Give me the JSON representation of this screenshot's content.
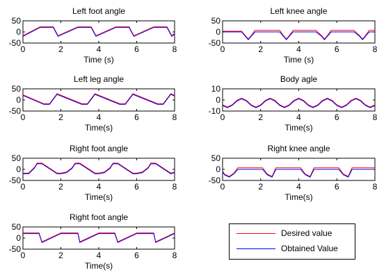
{
  "colors": {
    "desired": "#ff0000",
    "obtained": "#0000ff",
    "axis": "#000000"
  },
  "legend": {
    "desired_label": "Desired value",
    "obtained_label": "Obtained Value",
    "placement": "bottom-right"
  },
  "chart_data": [
    {
      "type": "line",
      "title": "Left foot angle",
      "xlabel": "Time (s)",
      "ylabel": "",
      "xlim": [
        0,
        8
      ],
      "ylim": [
        -50,
        50
      ],
      "xticks": [
        "0",
        "2",
        "4",
        "6",
        "8"
      ],
      "yticks": [
        "50",
        "0",
        "-50"
      ],
      "grid": false,
      "series": [
        {
          "role": "desired",
          "x": [
            0,
            0.9,
            1.6,
            1.85,
            2.9,
            3.6,
            3.85,
            4.9,
            5.6,
            5.85,
            6.9,
            7.6,
            7.85,
            8
          ],
          "values": [
            -20,
            20,
            20,
            -20,
            20,
            20,
            -20,
            20,
            20,
            -20,
            20,
            20,
            -20,
            -10
          ]
        },
        {
          "role": "obtained",
          "x": [
            0,
            0.9,
            1.6,
            1.85,
            2.9,
            3.6,
            3.85,
            4.9,
            5.6,
            5.85,
            6.9,
            7.6,
            7.85,
            8
          ],
          "values": [
            -20,
            20,
            20,
            -20,
            20,
            20,
            -20,
            20,
            20,
            -20,
            20,
            20,
            -20,
            -10
          ]
        }
      ]
    },
    {
      "type": "line",
      "title": "Left knee angle",
      "xlabel": "Time (s)",
      "ylabel": "",
      "xlim": [
        0,
        8
      ],
      "ylim": [
        -50,
        50
      ],
      "xticks": [
        "0",
        "2",
        "4",
        "6",
        "8"
      ],
      "yticks": [
        "50",
        "0",
        "-50"
      ],
      "grid": false,
      "series": [
        {
          "role": "desired",
          "x": [
            0,
            1.0,
            1.2,
            1.35,
            1.5,
            1.7,
            3.0,
            3.2,
            3.35,
            3.5,
            3.7,
            4.9,
            5.2,
            5.35,
            5.5,
            5.7,
            6.9,
            7.2,
            7.35,
            7.5,
            7.7,
            8
          ],
          "values": [
            0,
            0,
            -20,
            -35,
            -20,
            4,
            4,
            -20,
            -35,
            -20,
            4,
            4,
            -20,
            -35,
            -20,
            4,
            4,
            -20,
            -35,
            -20,
            4,
            4
          ]
        },
        {
          "role": "obtained",
          "x": [
            0,
            1.0,
            1.2,
            1.35,
            1.5,
            1.7,
            3.0,
            3.2,
            3.35,
            3.5,
            3.7,
            4.9,
            5.2,
            5.35,
            5.5,
            5.7,
            6.9,
            7.2,
            7.35,
            7.5,
            7.7,
            8
          ],
          "values": [
            0,
            0,
            -20,
            -35,
            -20,
            0,
            0,
            -20,
            -35,
            -20,
            0,
            0,
            -20,
            -35,
            -20,
            0,
            0,
            -20,
            -35,
            -20,
            0,
            0
          ]
        }
      ]
    },
    {
      "type": "line",
      "title": "Left leg angle",
      "xlabel": "Time(s)",
      "ylabel": "",
      "xlim": [
        0,
        8
      ],
      "ylim": [
        -50,
        50
      ],
      "xticks": [
        "0",
        "2",
        "4",
        "6",
        "8"
      ],
      "yticks": [
        "50",
        "0",
        "-50"
      ],
      "grid": false,
      "series": [
        {
          "role": "desired",
          "x": [
            0,
            1.1,
            1.4,
            1.8,
            3.1,
            3.4,
            3.8,
            5.1,
            5.4,
            5.8,
            7.1,
            7.4,
            7.8,
            8
          ],
          "values": [
            20,
            -20,
            -20,
            25,
            -20,
            -20,
            25,
            -20,
            -20,
            25,
            -20,
            -20,
            25,
            18
          ]
        },
        {
          "role": "obtained",
          "x": [
            0,
            1.1,
            1.4,
            1.8,
            3.1,
            3.4,
            3.8,
            5.1,
            5.4,
            5.8,
            7.1,
            7.4,
            7.8,
            8
          ],
          "values": [
            20,
            -20,
            -20,
            25,
            -20,
            -20,
            25,
            -20,
            -20,
            25,
            -20,
            -20,
            25,
            18
          ]
        }
      ]
    },
    {
      "type": "line",
      "title": "Body agle",
      "xlabel": "Time(s)",
      "ylabel": "",
      "xlim": [
        0,
        8
      ],
      "ylim": [
        -10,
        10
      ],
      "xticks": [
        "0",
        "2",
        "4",
        "6",
        "8"
      ],
      "yticks": [
        "10",
        "0",
        "-10"
      ],
      "grid": false,
      "series": [
        {
          "role": "desired",
          "x": [
            0,
            0.25,
            0.5,
            0.75,
            1.0,
            1.25,
            1.5,
            1.75,
            2.0,
            2.25,
            2.5,
            2.75,
            3.0,
            3.25,
            3.5,
            3.75,
            4.0,
            4.25,
            4.5,
            4.75,
            5.0,
            5.25,
            5.5,
            5.75,
            6.0,
            6.25,
            6.5,
            6.75,
            7.0,
            7.25,
            7.5,
            7.75,
            8.0
          ],
          "values": [
            -5,
            -7,
            -5,
            -1,
            1,
            -1,
            -5,
            -7,
            -5,
            -1,
            1,
            -1,
            -5,
            -7,
            -5,
            -1,
            1,
            -1,
            -5,
            -7,
            -5,
            -1,
            1,
            -1,
            -5,
            -7,
            -5,
            -1,
            1,
            -1,
            -5,
            -7,
            -5
          ]
        },
        {
          "role": "obtained",
          "x": [
            0,
            0.25,
            0.5,
            0.75,
            1.0,
            1.25,
            1.5,
            1.75,
            2.0,
            2.25,
            2.5,
            2.75,
            3.0,
            3.25,
            3.5,
            3.75,
            4.0,
            4.25,
            4.5,
            4.75,
            5.0,
            5.25,
            5.5,
            5.75,
            6.0,
            6.25,
            6.5,
            6.75,
            7.0,
            7.25,
            7.5,
            7.75,
            8.0
          ],
          "values": [
            -5,
            -7,
            -5,
            -1,
            1,
            -1,
            -5,
            -7,
            -5,
            -1,
            1,
            -1,
            -5,
            -7,
            -5,
            -1,
            1,
            -1,
            -5,
            -7,
            -5,
            -1,
            1,
            -1,
            -5,
            -7,
            -5,
            -1,
            1,
            -1,
            -5,
            -7,
            -5
          ]
        }
      ]
    },
    {
      "type": "line",
      "title": "Right foot angle",
      "xlabel": "Time(s)",
      "ylabel": "",
      "xlim": [
        0,
        8
      ],
      "ylim": [
        -50,
        50
      ],
      "xticks": [
        "0",
        "2",
        "4",
        "6",
        "8"
      ],
      "yticks": [
        "50",
        "0",
        "-50"
      ],
      "grid": false,
      "series": [
        {
          "role": "desired",
          "x": [
            0,
            0.3,
            0.6,
            0.75,
            1.0,
            1.8,
            2.0,
            2.3,
            2.6,
            2.75,
            3.0,
            3.8,
            4.0,
            4.3,
            4.6,
            4.75,
            5.0,
            5.8,
            6.0,
            6.3,
            6.6,
            6.75,
            7.0,
            7.8,
            8
          ],
          "values": [
            -20,
            -20,
            5,
            25,
            25,
            -20,
            -20,
            -15,
            5,
            25,
            25,
            -20,
            -20,
            -15,
            5,
            25,
            25,
            -20,
            -20,
            -15,
            5,
            25,
            25,
            -20,
            -15
          ]
        },
        {
          "role": "obtained",
          "x": [
            0,
            0.3,
            0.6,
            0.75,
            1.0,
            1.8,
            2.0,
            2.3,
            2.6,
            2.75,
            3.0,
            3.8,
            4.0,
            4.3,
            4.6,
            4.75,
            5.0,
            5.8,
            6.0,
            6.3,
            6.6,
            6.75,
            7.0,
            7.8,
            8
          ],
          "values": [
            -20,
            -20,
            5,
            25,
            25,
            -20,
            -20,
            -15,
            5,
            25,
            25,
            -20,
            -20,
            -15,
            5,
            25,
            25,
            -20,
            -20,
            -15,
            5,
            25,
            25,
            -20,
            -15
          ]
        }
      ]
    },
    {
      "type": "line",
      "title": "Right knee angle",
      "xlabel": "Time(s)",
      "ylabel": "",
      "xlim": [
        0,
        8
      ],
      "ylim": [
        -50,
        50
      ],
      "xticks": [
        "0",
        "2",
        "4",
        "6",
        "8"
      ],
      "yticks": [
        "50",
        "0",
        "-50"
      ],
      "grid": false,
      "series": [
        {
          "role": "desired",
          "x": [
            0,
            0.1,
            0.35,
            0.6,
            0.8,
            2.1,
            2.35,
            2.6,
            2.8,
            4.1,
            4.35,
            4.6,
            4.8,
            6.1,
            6.35,
            6.6,
            6.8,
            8
          ],
          "values": [
            -10,
            -25,
            -35,
            -20,
            4,
            4,
            -25,
            -35,
            4,
            4,
            -25,
            -35,
            4,
            4,
            -25,
            -35,
            4,
            4
          ]
        },
        {
          "role": "obtained",
          "x": [
            0,
            0.1,
            0.35,
            0.6,
            0.8,
            2.1,
            2.35,
            2.6,
            2.8,
            4.1,
            4.35,
            4.6,
            4.8,
            6.1,
            6.35,
            6.6,
            6.8,
            8
          ],
          "values": [
            -10,
            -25,
            -35,
            -20,
            0,
            0,
            -25,
            -35,
            0,
            0,
            -25,
            -35,
            0,
            0,
            -25,
            -35,
            0,
            0
          ]
        }
      ]
    },
    {
      "type": "line",
      "title": "Right foot angle",
      "xlabel": "Time(s)",
      "ylabel": "",
      "xlim": [
        0,
        8
      ],
      "ylim": [
        -50,
        50
      ],
      "xticks": [
        "0",
        "2",
        "4",
        "6",
        "8"
      ],
      "yticks": [
        "50",
        "0",
        "-50"
      ],
      "grid": false,
      "series": [
        {
          "role": "desired",
          "x": [
            0,
            0.85,
            1.0,
            2.0,
            2.9,
            3.0,
            4.0,
            4.85,
            5.0,
            6.0,
            6.9,
            7.0,
            8
          ],
          "values": [
            20,
            20,
            -20,
            20,
            20,
            -20,
            20,
            20,
            -20,
            20,
            20,
            -20,
            20
          ]
        },
        {
          "role": "obtained",
          "x": [
            0,
            0.85,
            1.0,
            2.0,
            2.9,
            3.0,
            4.0,
            4.85,
            5.0,
            6.0,
            6.9,
            7.0,
            8
          ],
          "values": [
            20,
            20,
            -20,
            20,
            20,
            -20,
            20,
            20,
            -20,
            20,
            20,
            -20,
            20
          ]
        }
      ]
    }
  ]
}
